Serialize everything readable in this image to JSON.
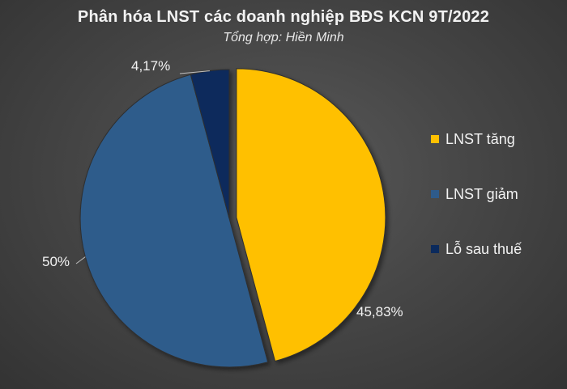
{
  "chart_data": {
    "type": "pie",
    "title": "Phân hóa LNST các doanh nghiệp BĐS KCN 9T/2022",
    "subtitle": "Tổng hợp: Hiền Minh",
    "slices": [
      {
        "name": "LNST tăng",
        "value": 45.83,
        "label": "45,83%",
        "color": "#ffc000"
      },
      {
        "name": "LNST giảm",
        "value": 50,
        "label": "50%",
        "color": "#2e5b8b"
      },
      {
        "name": "Lỗ sau thuế",
        "value": 4.17,
        "label": "4,17%",
        "color": "#0b2a5c"
      }
    ],
    "legend_position": "right"
  }
}
